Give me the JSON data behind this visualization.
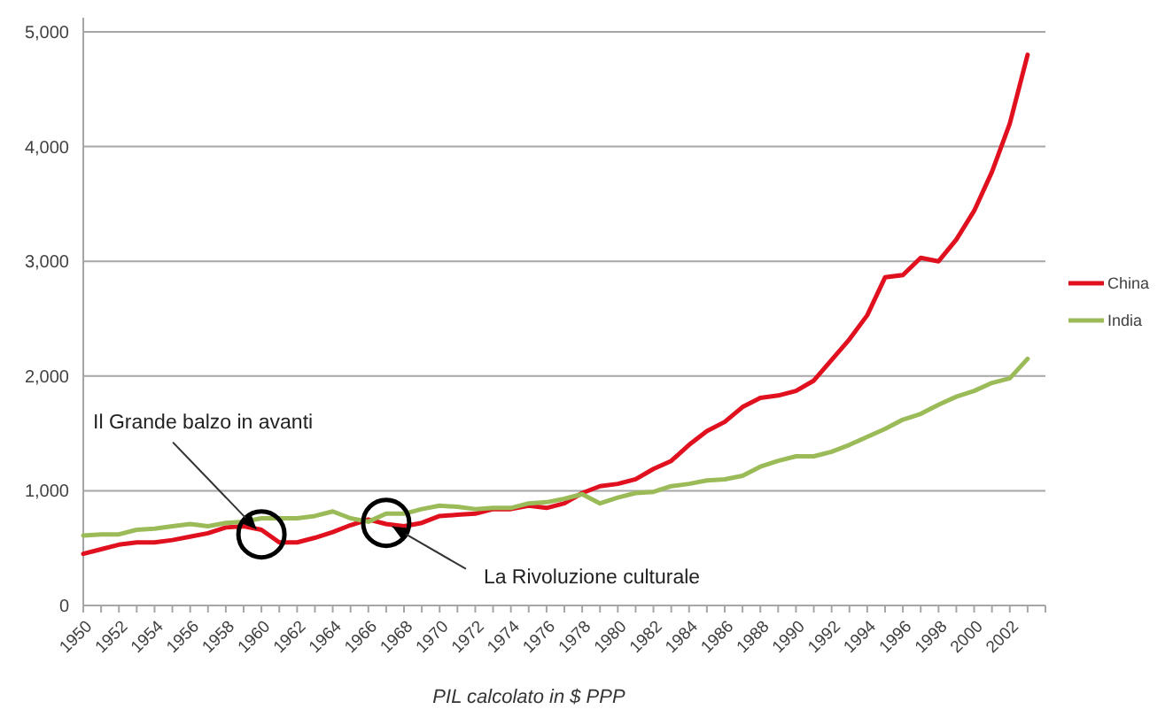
{
  "chart_data": {
    "type": "line",
    "xlabel": "PIL calcolato in $ PPP",
    "x": [
      1950,
      1951,
      1952,
      1953,
      1954,
      1955,
      1956,
      1957,
      1958,
      1959,
      1960,
      1961,
      1962,
      1963,
      1964,
      1965,
      1966,
      1967,
      1968,
      1969,
      1970,
      1971,
      1972,
      1973,
      1974,
      1975,
      1976,
      1977,
      1978,
      1979,
      1980,
      1981,
      1982,
      1983,
      1984,
      1985,
      1986,
      1987,
      1988,
      1989,
      1990,
      1991,
      1992,
      1993,
      1994,
      1995,
      1996,
      1997,
      1998,
      1999,
      2000,
      2001,
      2002,
      2003
    ],
    "series": [
      {
        "name": "China",
        "color": "#e0101e",
        "values": [
          450,
          490,
          530,
          550,
          550,
          570,
          600,
          630,
          680,
          690,
          660,
          550,
          550,
          590,
          640,
          700,
          750,
          710,
          690,
          720,
          780,
          790,
          800,
          840,
          840,
          870,
          850,
          890,
          980,
          1040,
          1060,
          1100,
          1190,
          1260,
          1400,
          1520,
          1600,
          1730,
          1810,
          1830,
          1870,
          1960,
          2140,
          2320,
          2530,
          2860,
          2880,
          3030,
          3000,
          3190,
          3440,
          3780,
          4200,
          4800
        ]
      },
      {
        "name": "India",
        "color": "#9bbb59",
        "values": [
          610,
          620,
          620,
          660,
          670,
          690,
          710,
          690,
          720,
          730,
          760,
          760,
          760,
          780,
          820,
          760,
          730,
          800,
          800,
          840,
          870,
          860,
          840,
          850,
          850,
          890,
          900,
          930,
          970,
          890,
          940,
          980,
          990,
          1040,
          1060,
          1090,
          1100,
          1130,
          1210,
          1260,
          1300,
          1300,
          1340,
          1400,
          1470,
          1540,
          1620,
          1670,
          1750,
          1820,
          1870,
          1940,
          1980,
          2150
        ]
      }
    ],
    "xlim": [
      1950,
      2004
    ],
    "xticks": [
      1950,
      {
        "value": 1951,
        "label": null
      },
      1952,
      {
        "value": 1953,
        "label": null
      },
      1954,
      {
        "value": 1955,
        "label": null
      },
      1956,
      {
        "value": 1957,
        "label": null
      },
      1958,
      {
        "value": 1959,
        "label": null
      },
      1960,
      {
        "value": 1961,
        "label": null
      },
      1962,
      {
        "value": 1963,
        "label": null
      },
      1964,
      {
        "value": 1965,
        "label": null
      },
      1966,
      {
        "value": 1967,
        "label": null
      },
      1968,
      {
        "value": 1969,
        "label": null
      },
      1970,
      {
        "value": 1971,
        "label": null
      },
      1972,
      {
        "value": 1973,
        "label": null
      },
      1974,
      {
        "value": 1975,
        "label": null
      },
      1976,
      {
        "value": 1977,
        "label": null
      },
      1978,
      {
        "value": 1979,
        "label": null
      },
      1980,
      {
        "value": 1981,
        "label": null
      },
      1982,
      {
        "value": 1983,
        "label": null
      },
      1984,
      {
        "value": 1985,
        "label": null
      },
      1986,
      {
        "value": 1987,
        "label": null
      },
      1988,
      {
        "value": 1989,
        "label": null
      },
      1990,
      {
        "value": 1991,
        "label": null
      },
      1992,
      {
        "value": 1993,
        "label": null
      },
      1994,
      {
        "value": 1995,
        "label": null
      },
      1996,
      {
        "value": 1997,
        "label": null
      },
      1998,
      {
        "value": 1999,
        "label": null
      },
      2000,
      {
        "value": 2001,
        "label": null
      },
      2002,
      {
        "value": 2003,
        "label": null
      },
      {
        "value": 2004,
        "label": null
      }
    ],
    "ylim": [
      0,
      5000
    ],
    "yticks": [
      {
        "value": 0,
        "label": "0"
      },
      {
        "value": 1000,
        "label": "1,000"
      },
      {
        "value": 2000,
        "label": "2,000"
      },
      {
        "value": 3000,
        "label": "3,000"
      },
      {
        "value": 4000,
        "label": "4,000"
      },
      {
        "value": 5000,
        "label": "5,000"
      }
    ],
    "grid": "y",
    "legend": "right",
    "marker": "none",
    "line_style": "solid",
    "annotations": [
      {
        "text": "Il Grande balzo in avanti",
        "x": 1960,
        "y": 620
      },
      {
        "text": "La Rivoluzione culturale",
        "x": 1967,
        "y": 720
      }
    ]
  }
}
